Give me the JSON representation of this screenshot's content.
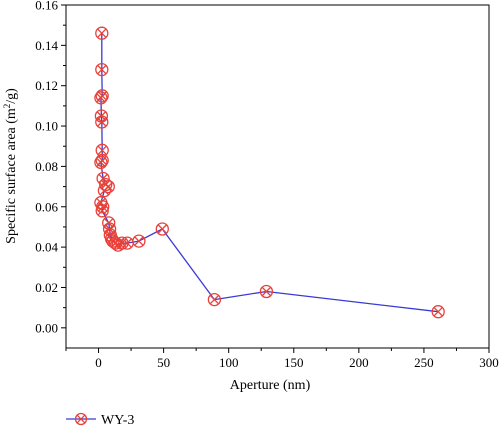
{
  "chart_data": {
    "type": "line",
    "xlabel": "Aperture (nm)",
    "ylabel_main": "Specific surface area (m",
    "ylabel_sup": "2",
    "ylabel_tail": "/g)",
    "xlim": [
      -25,
      300
    ],
    "ylim": [
      -0.01,
      0.16
    ],
    "xticks": [
      0,
      50,
      100,
      150,
      200,
      250,
      300
    ],
    "xtick_labels": [
      "0",
      "50",
      "100",
      "150",
      "200",
      "250",
      "300"
    ],
    "yticks": [
      0.0,
      0.02,
      0.04,
      0.06,
      0.08,
      0.1,
      0.12,
      0.14,
      0.16
    ],
    "ytick_labels": [
      "0.00",
      "0.02",
      "0.04",
      "0.06",
      "0.08",
      "0.10",
      "0.12",
      "0.14",
      "0.16"
    ],
    "grid": false,
    "legend_position": "bottom-left",
    "series": [
      {
        "name": "WY-3",
        "line_color": "#3a3ad6",
        "marker_color": "#e8413a",
        "marker": "circle-x",
        "points": [
          {
            "x": 2.5,
            "y": 0.146
          },
          {
            "x": 2.5,
            "y": 0.128
          },
          {
            "x": 2.8,
            "y": 0.115
          },
          {
            "x": 1.8,
            "y": 0.114
          },
          {
            "x": 2.2,
            "y": 0.105
          },
          {
            "x": 2.5,
            "y": 0.102
          },
          {
            "x": 2.8,
            "y": 0.088
          },
          {
            "x": 2.8,
            "y": 0.083
          },
          {
            "x": 1.8,
            "y": 0.082
          },
          {
            "x": 3.5,
            "y": 0.074
          },
          {
            "x": 5.5,
            "y": 0.071
          },
          {
            "x": 7.5,
            "y": 0.07
          },
          {
            "x": 4.5,
            "y": 0.068
          },
          {
            "x": 1.8,
            "y": 0.062
          },
          {
            "x": 3.2,
            "y": 0.06
          },
          {
            "x": 2.8,
            "y": 0.058
          },
          {
            "x": 7.8,
            "y": 0.052
          },
          {
            "x": 8.5,
            "y": 0.049
          },
          {
            "x": 9.0,
            "y": 0.046
          },
          {
            "x": 10.0,
            "y": 0.044
          },
          {
            "x": 11.0,
            "y": 0.043
          },
          {
            "x": 13.0,
            "y": 0.042
          },
          {
            "x": 15.0,
            "y": 0.041
          },
          {
            "x": 18.0,
            "y": 0.042
          },
          {
            "x": 22.0,
            "y": 0.042
          },
          {
            "x": 31.0,
            "y": 0.043
          },
          {
            "x": 49.0,
            "y": 0.049
          },
          {
            "x": 89.0,
            "y": 0.014
          },
          {
            "x": 129.0,
            "y": 0.018
          },
          {
            "x": 261.0,
            "y": 0.008
          }
        ]
      }
    ]
  },
  "legend": {
    "items": [
      {
        "label": "WY-3"
      }
    ]
  }
}
